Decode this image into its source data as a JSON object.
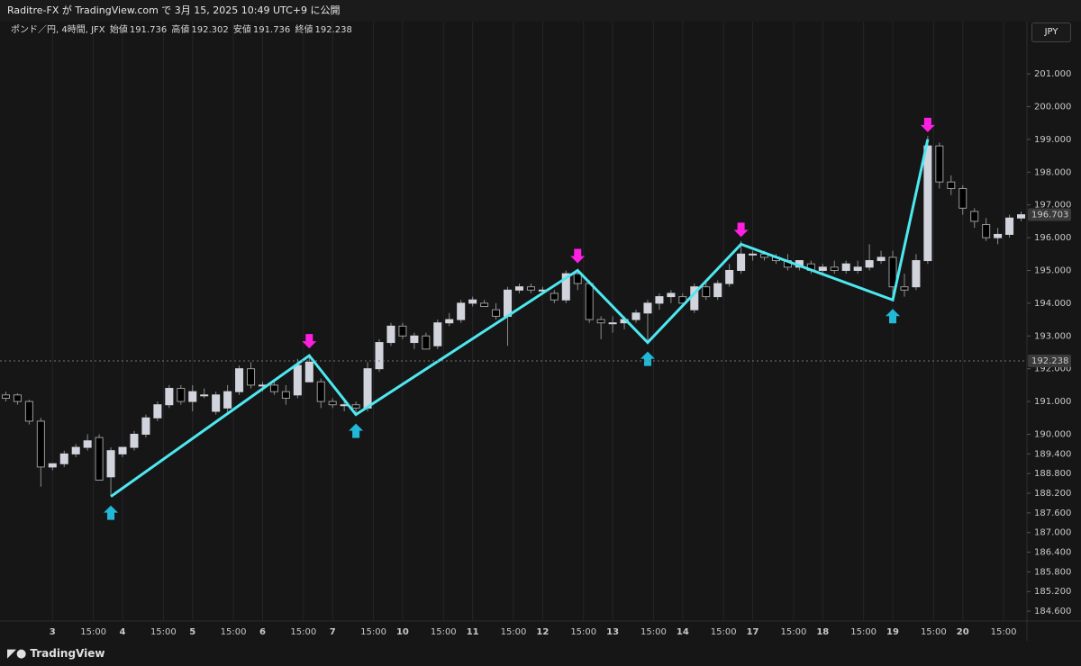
{
  "header": {
    "published": "Raditre-FX が TradingView.com で 3月 15, 2025 10:49 UTC+9 に公開",
    "symbol": "ポンド／円, 4時間, JFX",
    "open_label": "始値",
    "open": 191.736,
    "high_label": "高値",
    "high": 192.302,
    "low_label": "安値",
    "low": 191.736,
    "close_label": "終値",
    "close": 192.238,
    "currency": "JPY",
    "brand": "TradingView"
  },
  "chart_data": {
    "type": "candlestick",
    "up_color": "#d1d4dc",
    "down_color": "#000000",
    "open": [
      191.2,
      191.2,
      191.0,
      190.4,
      189.0,
      189.1,
      189.4,
      189.6,
      189.9,
      188.7,
      189.4,
      189.6,
      190.0,
      190.5,
      190.9,
      191.4,
      191.0,
      191.2,
      190.7,
      190.8,
      191.3,
      192.0,
      191.5,
      191.5,
      191.3,
      191.2,
      191.6,
      191.6,
      191.0,
      190.9,
      190.9,
      190.8,
      192.0,
      192.8,
      193.3,
      192.8,
      193.0,
      192.7,
      193.4,
      193.5,
      194.0,
      194.0,
      193.8,
      193.6,
      194.4,
      194.5,
      194.4,
      194.3,
      194.1,
      194.9,
      194.6,
      193.5,
      193.4,
      193.4,
      193.5,
      193.7,
      194.0,
      194.2,
      194.2,
      193.8,
      194.5,
      194.2,
      194.6,
      195.0,
      195.5,
      195.5,
      195.4,
      195.3,
      195.1,
      195.2,
      195.0,
      195.1,
      195.0,
      195.0,
      195.1,
      195.3,
      195.4,
      194.5,
      194.5,
      195.3,
      198.8,
      197.7,
      197.5,
      196.8,
      196.4,
      196.0,
      196.1,
      196.6
    ],
    "high": [
      191.3,
      191.25,
      191.05,
      190.5,
      189.1,
      189.5,
      189.7,
      190.0,
      190.0,
      189.6,
      189.6,
      190.1,
      190.6,
      191.0,
      191.5,
      191.5,
      191.5,
      191.4,
      191.3,
      191.5,
      192.1,
      192.2,
      191.6,
      191.6,
      191.5,
      192.3,
      192.4,
      191.7,
      191.1,
      191.0,
      191.0,
      192.2,
      192.9,
      193.4,
      193.4,
      193.1,
      193.1,
      193.5,
      193.7,
      194.1,
      194.2,
      194.1,
      194.0,
      194.5,
      194.6,
      194.6,
      194.5,
      194.4,
      195.0,
      195.0,
      194.7,
      193.6,
      193.6,
      193.6,
      193.8,
      194.1,
      194.3,
      194.4,
      194.3,
      194.6,
      194.7,
      194.7,
      195.2,
      195.9,
      195.6,
      195.6,
      195.5,
      195.5,
      195.3,
      195.3,
      195.2,
      195.3,
      195.3,
      195.3,
      195.8,
      195.6,
      195.6,
      194.9,
      195.5,
      199.1,
      198.9,
      197.9,
      197.6,
      196.9,
      196.6,
      196.3,
      196.7,
      196.8
    ],
    "low": [
      191.0,
      190.9,
      190.3,
      188.4,
      188.9,
      189.0,
      189.3,
      189.5,
      188.6,
      188.1,
      189.3,
      189.5,
      189.9,
      190.4,
      190.8,
      190.9,
      190.7,
      191.1,
      190.6,
      190.6,
      191.2,
      191.4,
      191.3,
      191.2,
      190.9,
      191.1,
      191.6,
      190.8,
      190.8,
      190.7,
      190.6,
      190.7,
      191.9,
      192.7,
      192.9,
      192.6,
      192.6,
      192.6,
      193.3,
      193.4,
      193.9,
      193.9,
      193.5,
      192.7,
      194.3,
      194.3,
      194.3,
      194.0,
      194.0,
      194.4,
      193.4,
      192.9,
      193.1,
      193.2,
      193.4,
      192.8,
      193.8,
      194.0,
      193.9,
      193.7,
      194.1,
      194.1,
      194.5,
      194.9,
      195.3,
      195.3,
      195.2,
      195.0,
      195.0,
      194.9,
      194.9,
      194.9,
      194.9,
      194.9,
      195.0,
      195.2,
      194.1,
      194.2,
      194.4,
      195.2,
      197.5,
      197.3,
      196.7,
      196.3,
      195.9,
      195.8,
      196.0,
      196.5
    ],
    "close": [
      191.1,
      191.0,
      190.4,
      189.0,
      189.1,
      189.4,
      189.6,
      189.8,
      188.6,
      189.5,
      189.6,
      190.0,
      190.5,
      190.9,
      191.4,
      191.0,
      191.3,
      191.2,
      191.2,
      191.3,
      192.0,
      191.5,
      191.5,
      191.3,
      191.1,
      192.1,
      192.2,
      191.0,
      190.9,
      190.9,
      190.8,
      192.0,
      192.8,
      193.3,
      193.0,
      193.0,
      192.6,
      193.4,
      193.5,
      194.0,
      194.1,
      193.9,
      193.6,
      194.4,
      194.5,
      194.4,
      194.4,
      194.1,
      194.9,
      194.6,
      193.5,
      193.4,
      193.4,
      193.5,
      193.7,
      194.0,
      194.2,
      194.3,
      194.0,
      194.5,
      194.2,
      194.6,
      195.0,
      195.5,
      195.5,
      195.4,
      195.3,
      195.1,
      195.3,
      195.0,
      195.1,
      195.0,
      195.2,
      195.1,
      195.3,
      195.4,
      194.5,
      194.4,
      195.3,
      198.8,
      197.7,
      197.5,
      196.9,
      196.5,
      196.0,
      196.1,
      196.6,
      196.7
    ],
    "zigzag": {
      "color": "#4de8f0",
      "up_arrow_color": "#22b8d8",
      "down_arrow_color": "#ff1fe0",
      "x": [
        9,
        26,
        30,
        49,
        55,
        63,
        76,
        79
      ],
      "values": [
        188.1,
        192.4,
        190.6,
        195.0,
        192.8,
        195.8,
        194.1,
        199.0
      ]
    },
    "last_price": 196.703,
    "ylim": [
      184.3,
      202.43
    ],
    "yticks": [
      {
        "value": 184.6,
        "label": "184.600"
      },
      {
        "value": 185.2,
        "label": "185.200"
      },
      {
        "value": 185.8,
        "label": "185.800"
      },
      {
        "value": 186.4,
        "label": "186.400"
      },
      {
        "value": 187,
        "label": "187.000"
      },
      {
        "value": 187.6,
        "label": "187.600"
      },
      {
        "value": 188.2,
        "label": "188.200"
      },
      {
        "value": 188.8,
        "label": "188.800"
      },
      {
        "value": 189.4,
        "label": "189.400"
      },
      {
        "value": 190,
        "label": "190.000"
      },
      {
        "value": 191,
        "label": "191.000"
      },
      {
        "value": 192,
        "label": "192.000"
      },
      {
        "value": 193,
        "label": "193.000"
      },
      {
        "value": 194,
        "label": "194.000"
      },
      {
        "value": 195,
        "label": "195.000"
      },
      {
        "value": 196,
        "label": "196.000"
      },
      {
        "value": 197,
        "label": "197.000"
      },
      {
        "value": 198,
        "label": "198.000"
      },
      {
        "value": 199,
        "label": "199.000"
      },
      {
        "value": 200,
        "label": "200.000"
      },
      {
        "value": 201,
        "label": "201.000"
      }
    ],
    "xlim": [
      -0.5,
      87.5
    ],
    "xticks": [
      {
        "value": 4,
        "label": "3"
      },
      {
        "value": 7.5,
        "label": "15:00"
      },
      {
        "value": 10,
        "label": "4"
      },
      {
        "value": 13.5,
        "label": "15:00"
      },
      {
        "value": 16,
        "label": "5"
      },
      {
        "value": 19.5,
        "label": "15:00"
      },
      {
        "value": 22,
        "label": "6"
      },
      {
        "value": 25.5,
        "label": "15:00"
      },
      {
        "value": 28,
        "label": "7"
      },
      {
        "value": 31.5,
        "label": "15:00"
      },
      {
        "value": 34,
        "label": "10"
      },
      {
        "value": 37.5,
        "label": "15:00"
      },
      {
        "value": 40,
        "label": "11"
      },
      {
        "value": 43.5,
        "label": "15:00"
      },
      {
        "value": 46,
        "label": "12"
      },
      {
        "value": 49.5,
        "label": "15:00"
      },
      {
        "value": 52,
        "label": "13"
      },
      {
        "value": 55.5,
        "label": "15:00"
      },
      {
        "value": 58,
        "label": "14"
      },
      {
        "value": 61.5,
        "label": "15:00"
      },
      {
        "value": 64,
        "label": "17"
      },
      {
        "value": 67.5,
        "label": "15:00"
      },
      {
        "value": 70,
        "label": "18"
      },
      {
        "value": 73.5,
        "label": "15:00"
      },
      {
        "value": 76,
        "label": "19"
      },
      {
        "value": 79.5,
        "label": "15:00"
      },
      {
        "value": 82,
        "label": "20"
      },
      {
        "value": 85.5,
        "label": "15:00"
      }
    ],
    "grid": true
  }
}
